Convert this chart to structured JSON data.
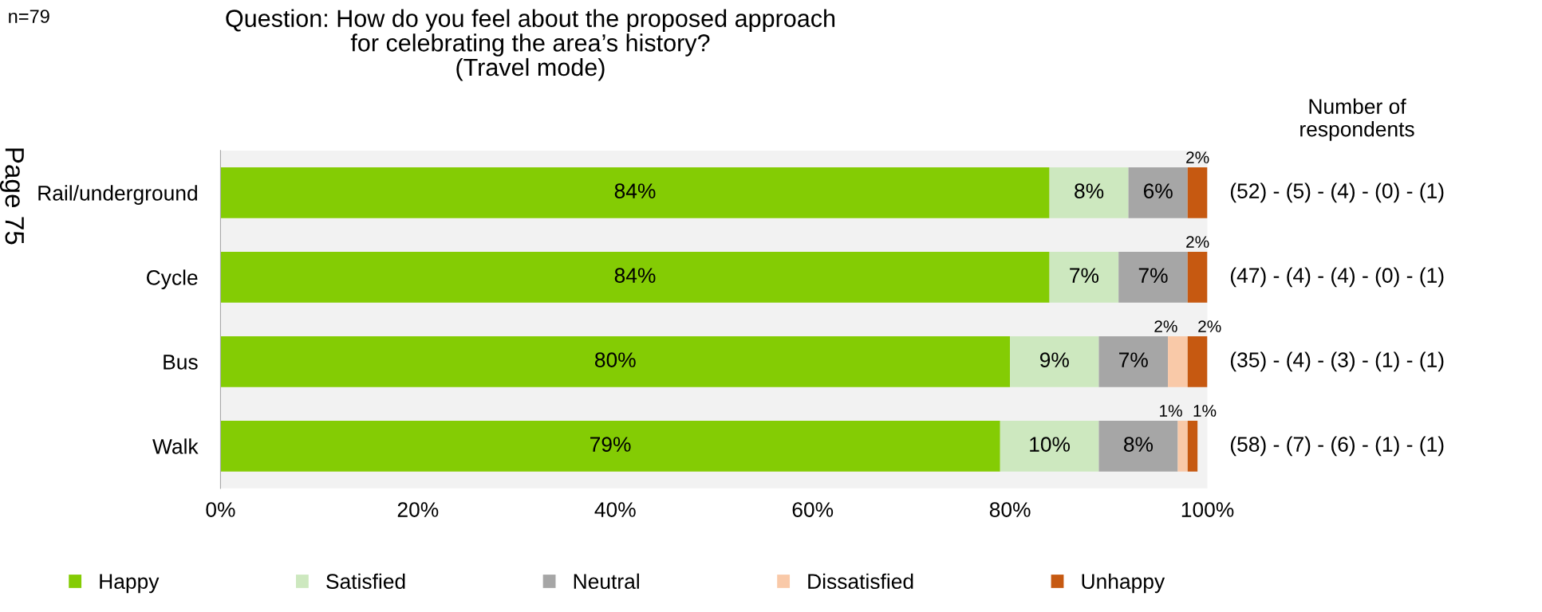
{
  "chart_data": {
    "type": "bar",
    "orientation": "horizontal",
    "stacked": true,
    "title": "Question: How do you feel about the proposed approach\nfor celebrating the area’s history?\n(Travel mode)",
    "categories": [
      "Rail/underground",
      "Cycle",
      "Bus",
      "Walk"
    ],
    "series": [
      {
        "name": "Happy",
        "color": "#84cc04",
        "values": [
          84,
          84,
          80,
          79
        ],
        "value_labels": [
          "84%",
          "84%",
          "80%",
          "79%"
        ]
      },
      {
        "name": "Satisfied",
        "color": "#cde8bf",
        "values": [
          8,
          7,
          9,
          10
        ],
        "value_labels": [
          "8%",
          "7%",
          "9%",
          "10%"
        ]
      },
      {
        "name": "Neutral",
        "color": "#a6a6a6",
        "values": [
          6,
          7,
          7,
          8
        ],
        "value_labels": [
          "6%",
          "7%",
          "7%",
          "8%"
        ]
      },
      {
        "name": "Dissatisfied",
        "color": "#f9c9a8",
        "values": [
          0,
          0,
          2,
          1
        ],
        "value_labels": [
          null,
          null,
          "2%",
          "1%"
        ]
      },
      {
        "name": "Unhappy",
        "color": "#c65911",
        "values": [
          2,
          2,
          2,
          1
        ],
        "value_labels": [
          "2%",
          "2%",
          "2%",
          "1%"
        ]
      }
    ],
    "xlim": [
      0,
      100
    ],
    "xticks": [
      {
        "value": 0,
        "label": "0%"
      },
      {
        "value": 20,
        "label": "20%"
      },
      {
        "value": 40,
        "label": "40%"
      },
      {
        "value": 60,
        "label": "60%"
      },
      {
        "value": 80,
        "label": "80%"
      },
      {
        "value": 100,
        "label": "100%"
      }
    ],
    "legend": "bottom",
    "annotations": [
      "n=79",
      "Page 75",
      "Number of\nrespondents",
      "(52) - (5) - (4) - (0) - (1)",
      "(47) - (4) - (4) - (0) - (1)",
      "(35) - (4) - (3) - (1) - (1)",
      "(58) - (7) - (6) - (1) - (1)"
    ]
  }
}
